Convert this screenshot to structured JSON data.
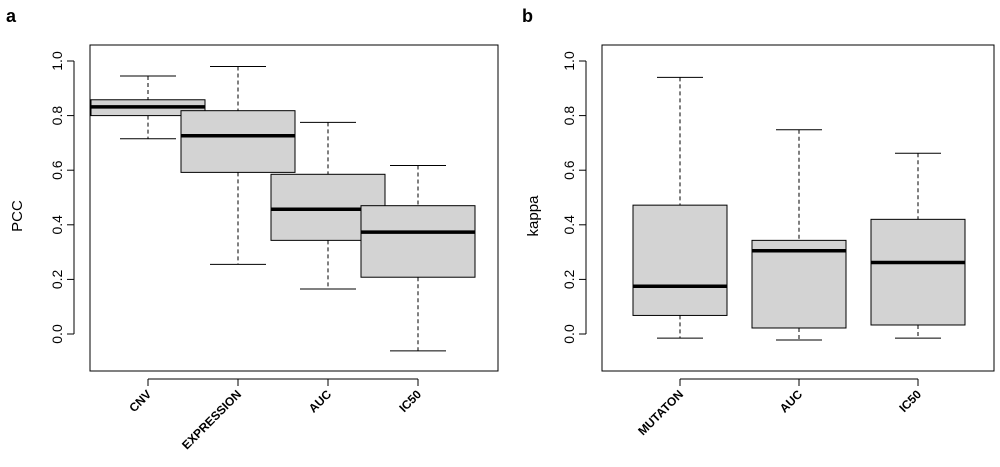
{
  "colors": {
    "box_fill": "#d3d3d3",
    "stroke": "#000000"
  },
  "chart_data": [
    {
      "type": "boxplot",
      "panel_label": "a",
      "title": "",
      "xlabel": "",
      "ylabel": "PCC",
      "ylim": [
        -0.1,
        1.05
      ],
      "yticks": [
        "0.0",
        "0.2",
        "0.4",
        "0.6",
        "0.8",
        "1.0"
      ],
      "categories": [
        "CNV",
        "EXPRESSION",
        "AUC",
        "IC50"
      ],
      "boxes": [
        {
          "category": "CNV",
          "whisker_low": 0.715,
          "q1": 0.8,
          "median": 0.832,
          "q3": 0.858,
          "whisker_high": 0.945
        },
        {
          "category": "EXPRESSION",
          "whisker_low": 0.255,
          "q1": 0.592,
          "median": 0.726,
          "q3": 0.818,
          "whisker_high": 0.98
        },
        {
          "category": "AUC",
          "whisker_low": 0.165,
          "q1": 0.343,
          "median": 0.457,
          "q3": 0.585,
          "whisker_high": 0.775
        },
        {
          "category": "IC50",
          "whisker_low": -0.062,
          "q1": 0.208,
          "median": 0.373,
          "q3": 0.47,
          "whisker_high": 0.617
        }
      ],
      "grid": false,
      "legend": "none"
    },
    {
      "type": "boxplot",
      "panel_label": "b",
      "title": "",
      "xlabel": "",
      "ylabel": "kappa",
      "ylim": [
        -0.1,
        1.05
      ],
      "yticks": [
        "0.0",
        "0.2",
        "0.4",
        "0.6",
        "0.8",
        "1.0"
      ],
      "categories": [
        "MUTATON",
        "AUC",
        "IC50"
      ],
      "boxes": [
        {
          "category": "MUTATON",
          "whisker_low": -0.015,
          "q1": 0.068,
          "median": 0.175,
          "q3": 0.472,
          "whisker_high": 0.94
        },
        {
          "category": "AUC",
          "whisker_low": -0.022,
          "q1": 0.022,
          "median": 0.305,
          "q3": 0.343,
          "whisker_high": 0.748
        },
        {
          "category": "IC50",
          "whisker_low": -0.015,
          "q1": 0.033,
          "median": 0.262,
          "q3": 0.42,
          "whisker_high": 0.662
        }
      ],
      "grid": false,
      "legend": "none"
    }
  ]
}
